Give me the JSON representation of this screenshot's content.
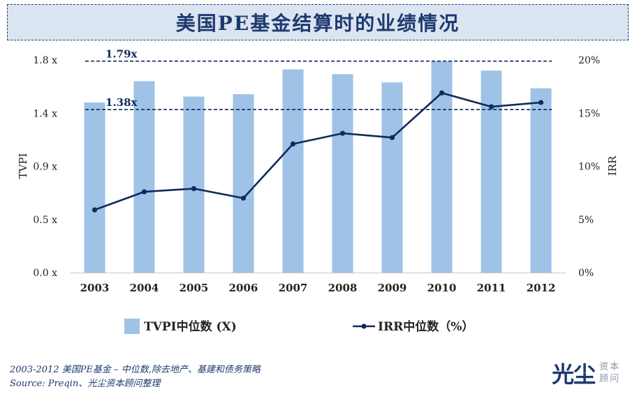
{
  "title": "美国PE基金结算时的业绩情况",
  "chart_data": {
    "type": "bar+line",
    "categories": [
      "2003",
      "2004",
      "2005",
      "2006",
      "2007",
      "2008",
      "2009",
      "2010",
      "2011",
      "2012"
    ],
    "series": [
      {
        "name": "TVPI中位数 (X)",
        "type": "bar",
        "axis": "left",
        "values": [
          1.44,
          1.62,
          1.49,
          1.51,
          1.72,
          1.68,
          1.61,
          1.79,
          1.71,
          1.56
        ],
        "color": "#9fc2e7"
      },
      {
        "name": "IRR中位数（%）",
        "type": "line",
        "axis": "right",
        "values": [
          5.9,
          7.6,
          7.9,
          7.0,
          12.1,
          13.1,
          12.7,
          16.9,
          15.6,
          16.0
        ],
        "color": "#0f2a5c"
      }
    ],
    "left_axis": {
      "label": "TVPI",
      "ticks": [
        "0.0 x",
        "0.5 x",
        "0.9 x",
        "1.4 x",
        "1.8 x"
      ],
      "ylim": [
        0,
        1.8
      ]
    },
    "right_axis": {
      "label": "IRR",
      "ticks": [
        "0%",
        "5%",
        "10%",
        "15%",
        "20%"
      ],
      "ylim": [
        0,
        20
      ]
    },
    "reference_lines": [
      {
        "label": "1.79x",
        "value": 1.79
      },
      {
        "label": "1.38x",
        "value": 1.38
      }
    ],
    "legend_position": "bottom"
  },
  "footnotes": [
    "2003-2012 美国PE基金 – 中位数,除去地产、基建和债务策略",
    "Source: Preqin、光尘资本顾问整理"
  ],
  "logo": {
    "main": "光尘",
    "sub1": "资本",
    "sub2": "顾问"
  },
  "colors": {
    "navy": "#0f2a5c",
    "bar": "#9fc2e7",
    "title_bg": "#dbe4f1"
  }
}
